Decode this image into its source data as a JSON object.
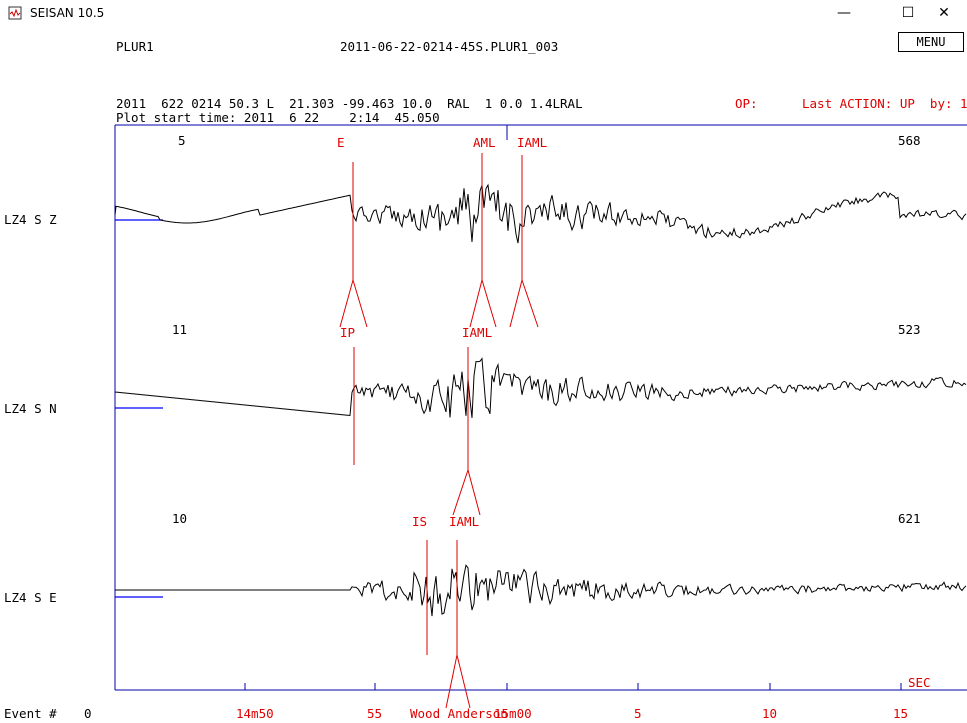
{
  "window": {
    "title": "SEISAN 10.5",
    "minimize": "—",
    "maximize": "☐",
    "close": "✕"
  },
  "header": {
    "station": "PLUR1",
    "filename": "2011-06-22-0214-45S.PLUR1_003",
    "menu_label": "MENU",
    "event_line": "2011  622 0214 50.3 L  21.303 -99.463 10.0  RAL  1 0.0 1.4LRAL",
    "start_time_line": "Plot start time: 2011  6 22    2:14  45.050",
    "op_label": "OP:",
    "last_action": "Last ACTION: UP  by: 1"
  },
  "traces": [
    {
      "channel": "LZ4   S Z",
      "count_left": "5",
      "count_right": "568",
      "picks": [
        {
          "label": "E"
        },
        {
          "label": "AML"
        },
        {
          "label": "IAML"
        }
      ],
      "lower_picks": [
        {
          "label": "IP"
        },
        {
          "label": "IAML"
        }
      ]
    },
    {
      "channel": "LZ4   S N",
      "count_left": "11",
      "count_right": "523",
      "lower_picks": [
        {
          "label": "IS"
        },
        {
          "label": "IAML"
        }
      ]
    },
    {
      "channel": "LZ4   S E",
      "count_left": "10",
      "count_right": "621"
    }
  ],
  "time_axis": {
    "unit": "SEC",
    "ticks": [
      "14m50",
      "55",
      "15m00",
      "5",
      "10",
      "15"
    ],
    "overlay_label": "Wood Anderson"
  },
  "footer": {
    "event_label": "Event #",
    "event_number": "0"
  },
  "colors": {
    "pick": "#e00000",
    "trace": "#000000",
    "frame": "#0000aa",
    "baseline": "#0000ff"
  }
}
